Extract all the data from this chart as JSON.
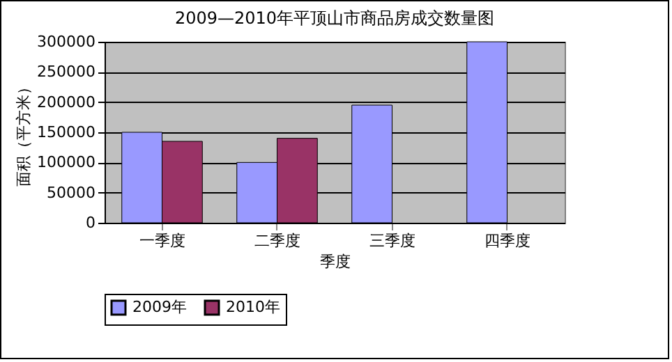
{
  "chart_data": {
    "type": "bar",
    "title": "2009—2010年平顶山市商品房成交数量图",
    "xlabel": "季度",
    "ylabel": "面积（平方米）",
    "categories": [
      "一季度",
      "二季度",
      "三季度",
      "四季度"
    ],
    "series": [
      {
        "name": "2009年",
        "color": "#9999ff",
        "values": [
          150000,
          100000,
          195000,
          300000
        ]
      },
      {
        "name": "2010年",
        "color": "#993366",
        "values": [
          135000,
          140000,
          null,
          null
        ]
      }
    ],
    "ylim": [
      0,
      300000
    ],
    "yticks": [
      0,
      50000,
      100000,
      150000,
      200000,
      250000,
      300000
    ],
    "grid": "y",
    "legend": "bottom"
  }
}
